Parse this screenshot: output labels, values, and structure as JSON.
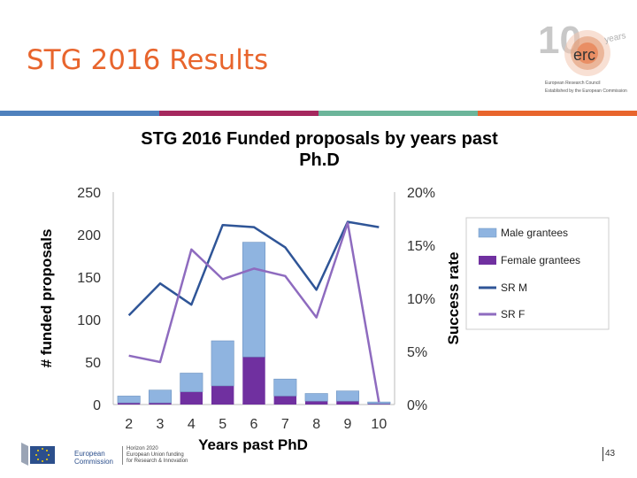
{
  "slide": {
    "title": "STG 2016 Results",
    "page_number": "43"
  },
  "colors": {
    "title": "#e8652d",
    "stripe": [
      "#4f81bd",
      "#a5285e",
      "#6cb59a",
      "#e8652d"
    ],
    "male": "#8fb4e0",
    "female": "#7030a0",
    "sr_m": "#2f5597",
    "sr_f": "#8e6bbf"
  },
  "logo": {
    "main": "erc",
    "ten": "10",
    "years": "years",
    "line1": "European Research Council",
    "line2": "Established by the European Commission"
  },
  "footer": {
    "ec_line1": "European",
    "ec_line2": "Commission",
    "h2020_line1": "Horizon 2020",
    "h2020_line2": "European Union funding",
    "h2020_line3": "for Research & Innovation"
  },
  "chart_data": {
    "type": "bar",
    "title_line1": "STG 2016 Funded proposals by years past",
    "title_line2": "Ph.D",
    "xlabel": "Years past PhD",
    "ylabel": "# funded proposals",
    "y2label": "Success rate",
    "categories": [
      "2",
      "3",
      "4",
      "5",
      "6",
      "7",
      "8",
      "9",
      "10"
    ],
    "ylim": [
      0,
      250
    ],
    "y_ticks": [
      "0",
      "50",
      "100",
      "150",
      "200",
      "250"
    ],
    "y2lim": [
      0,
      20
    ],
    "y2_ticks": [
      "0%",
      "5%",
      "10%",
      "15%",
      "20%"
    ],
    "stacked": true,
    "series": [
      {
        "name": "Male grantees",
        "kind": "bar",
        "axis": "left",
        "values": [
          8,
          15,
          22,
          53,
          135,
          20,
          9,
          12,
          2
        ]
      },
      {
        "name": "Female grantees",
        "kind": "bar",
        "axis": "left",
        "values": [
          2,
          2,
          15,
          22,
          56,
          10,
          4,
          4,
          1
        ]
      },
      {
        "name": "SR M",
        "kind": "line",
        "axis": "right",
        "values": [
          8.4,
          11.4,
          9.4,
          16.9,
          16.7,
          14.8,
          10.8,
          17.2,
          16.7
        ]
      },
      {
        "name": "SR F",
        "kind": "line",
        "axis": "right",
        "values": [
          4.6,
          4.0,
          14.6,
          11.8,
          12.8,
          12.1,
          8.2,
          17.1,
          0.2
        ]
      }
    ]
  }
}
